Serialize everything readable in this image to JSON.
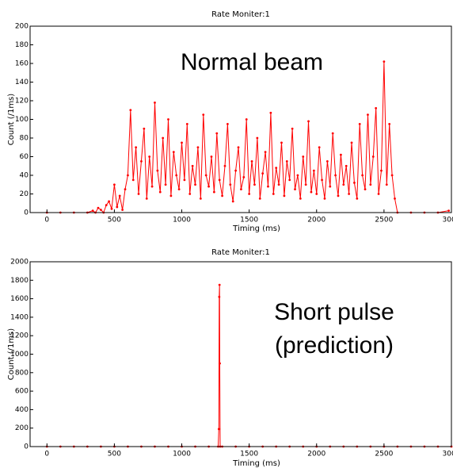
{
  "chart_data": [
    {
      "type": "line",
      "title": "Rate Moniter:1",
      "xlabel": "Timing (ms)",
      "ylabel": "Count (/1ms)",
      "annotation": [
        "Normal beam"
      ],
      "color": "#ff0000",
      "xlim": [
        -125,
        3000
      ],
      "ylim": [
        0,
        200
      ],
      "xticks": [
        0,
        500,
        1000,
        1500,
        2000,
        2500,
        3000
      ],
      "yticks": [
        0,
        20,
        40,
        60,
        80,
        100,
        120,
        140,
        160,
        180,
        200
      ],
      "x": [
        0,
        100,
        200,
        300,
        340,
        360,
        380,
        400,
        420,
        440,
        460,
        480,
        500,
        520,
        540,
        560,
        580,
        600,
        620,
        640,
        660,
        680,
        700,
        720,
        740,
        760,
        780,
        800,
        820,
        840,
        860,
        880,
        900,
        920,
        940,
        960,
        980,
        1000,
        1020,
        1040,
        1060,
        1080,
        1100,
        1120,
        1140,
        1160,
        1180,
        1200,
        1220,
        1240,
        1260,
        1280,
        1300,
        1320,
        1340,
        1360,
        1380,
        1400,
        1420,
        1440,
        1460,
        1480,
        1500,
        1520,
        1540,
        1560,
        1580,
        1600,
        1620,
        1640,
        1660,
        1680,
        1700,
        1720,
        1740,
        1760,
        1780,
        1800,
        1820,
        1840,
        1860,
        1880,
        1900,
        1920,
        1940,
        1960,
        1980,
        2000,
        2020,
        2040,
        2060,
        2080,
        2100,
        2120,
        2140,
        2160,
        2180,
        2200,
        2220,
        2240,
        2260,
        2280,
        2300,
        2320,
        2340,
        2360,
        2380,
        2400,
        2420,
        2440,
        2460,
        2480,
        2500,
        2520,
        2540,
        2560,
        2580,
        2600,
        2700,
        2800,
        2900,
        2980
      ],
      "values": [
        0,
        0,
        0,
        0,
        2,
        0,
        5,
        3,
        0,
        8,
        12,
        4,
        30,
        6,
        18,
        3,
        25,
        40,
        110,
        35,
        70,
        20,
        55,
        90,
        15,
        60,
        28,
        118,
        45,
        22,
        80,
        30,
        100,
        18,
        65,
        40,
        25,
        75,
        35,
        95,
        20,
        50,
        30,
        70,
        15,
        105,
        40,
        28,
        60,
        22,
        85,
        35,
        18,
        50,
        95,
        30,
        12,
        45,
        70,
        25,
        38,
        100,
        20,
        55,
        30,
        80,
        15,
        42,
        65,
        28,
        107,
        20,
        48,
        30,
        75,
        18,
        55,
        35,
        90,
        25,
        40,
        15,
        60,
        30,
        98,
        22,
        45,
        20,
        70,
        35,
        15,
        55,
        28,
        85,
        40,
        18,
        62,
        30,
        50,
        20,
        75,
        32,
        15,
        95,
        40,
        25,
        105,
        30,
        60,
        112,
        20,
        45,
        162,
        30,
        95,
        40,
        15,
        0,
        0,
        0,
        0,
        2
      ]
    },
    {
      "type": "line",
      "title": "Rate Moniter:1",
      "xlabel": "Timing (ms)",
      "ylabel": "Count (/1ms)",
      "annotation": [
        "Short pulse",
        "(prediction)"
      ],
      "color": "#ff0000",
      "xlim": [
        -125,
        3000
      ],
      "ylim": [
        0,
        2000
      ],
      "xticks": [
        0,
        500,
        1000,
        1500,
        2000,
        2500,
        3000
      ],
      "yticks": [
        0,
        200,
        400,
        600,
        800,
        1000,
        1200,
        1400,
        1600,
        1800,
        2000
      ],
      "x": [
        0,
        100,
        200,
        300,
        400,
        500,
        600,
        700,
        800,
        900,
        1000,
        1100,
        1200,
        1270,
        1275,
        1278,
        1280,
        1282,
        1285,
        1300,
        1400,
        1500,
        1600,
        1700,
        1800,
        1900,
        2000,
        2100,
        2200,
        2300,
        2400,
        2500,
        2600,
        2700,
        2800,
        2900,
        3000
      ],
      "values": [
        0,
        0,
        0,
        0,
        0,
        0,
        0,
        0,
        0,
        0,
        0,
        0,
        0,
        0,
        190,
        1620,
        1750,
        900,
        0,
        0,
        0,
        0,
        0,
        0,
        0,
        0,
        0,
        0,
        0,
        0,
        0,
        0,
        0,
        0,
        0,
        0,
        0
      ]
    }
  ]
}
